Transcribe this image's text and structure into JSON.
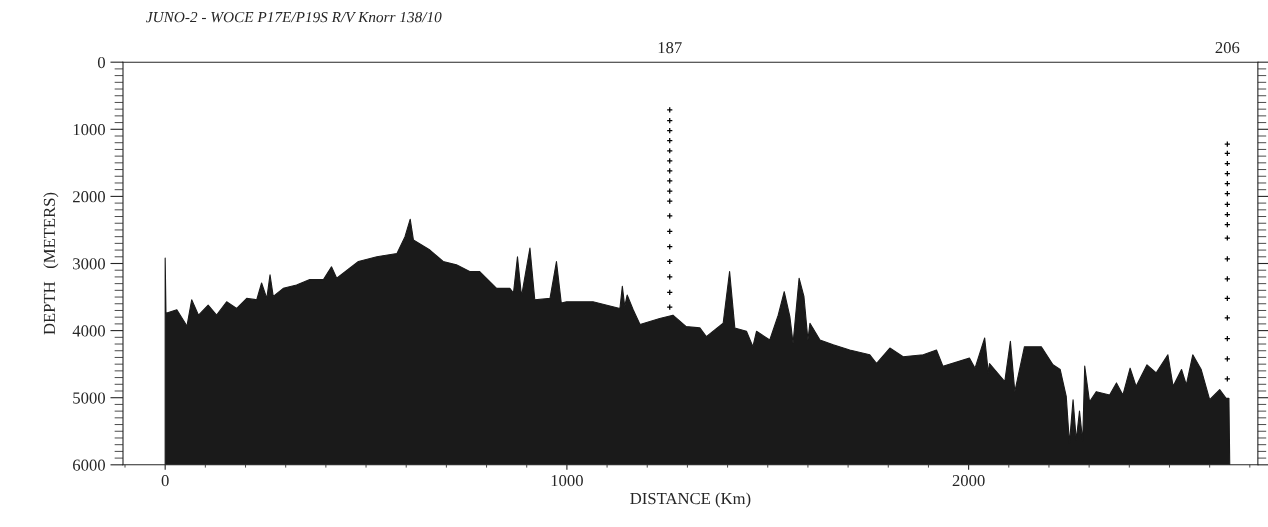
{
  "chart_data": {
    "type": "area",
    "title": "JUNO-2 - WOCE P17E/P19S R/V Knorr 138/10",
    "xlabel": "DISTANCE (Km)",
    "ylabel": "DEPTH   (METERS)",
    "xlim": [
      -105,
      2720
    ],
    "xticks": [
      0,
      1000,
      2000
    ],
    "ylim": [
      6000,
      0
    ],
    "yticks": [
      0,
      1000,
      2000,
      3000,
      4000,
      5000,
      6000
    ],
    "grid": false,
    "legend": false,
    "series": [
      {
        "type": "area",
        "color": "#1a1a1a",
        "x": [
          0,
          0,
          2,
          29,
          50,
          54,
          66,
          83,
          107,
          128,
          153,
          178,
          203,
          228,
          240,
          253,
          261,
          269,
          294,
          327,
          360,
          394,
          414,
          427,
          481,
          527,
          577,
          597,
          610,
          618,
          659,
          692,
          725,
          758,
          783,
          825,
          858,
          867,
          877,
          887,
          908,
          920,
          958,
          974,
          986,
          999,
          1065,
          1132,
          1138,
          1144,
          1150,
          1165,
          1182,
          1231,
          1264,
          1297,
          1331,
          1347,
          1389,
          1405,
          1418,
          1447,
          1463,
          1472,
          1505,
          1526,
          1541,
          1555,
          1563,
          1578,
          1590,
          1600,
          1605,
          1630,
          1663,
          1704,
          1754,
          1771,
          1804,
          1837,
          1887,
          1920,
          1936,
          2002,
          2016,
          2040,
          2049,
          2052,
          2090,
          2104,
          2115,
          2139,
          2181,
          2210,
          2228,
          2243,
          2251,
          2260,
          2268,
          2276,
          2284,
          2289,
          2301,
          2318,
          2351,
          2368,
          2384,
          2402,
          2417,
          2444,
          2467,
          2496,
          2509,
          2530,
          2542,
          2558,
          2579,
          2600,
          2625,
          2641,
          2648,
          2650
        ],
        "values": [
          6000,
          2920,
          3740,
          3690,
          3890,
          3940,
          3540,
          3770,
          3620,
          3770,
          3570,
          3670,
          3520,
          3540,
          3290,
          3520,
          3170,
          3490,
          3370,
          3320,
          3240,
          3240,
          3050,
          3220,
          2970,
          2900,
          2850,
          2600,
          2340,
          2650,
          2800,
          2970,
          3020,
          3120,
          3120,
          3370,
          3370,
          3440,
          2900,
          3490,
          2770,
          3540,
          3520,
          2970,
          3590,
          3570,
          3570,
          3670,
          3340,
          3640,
          3470,
          3690,
          3910,
          3820,
          3770,
          3940,
          3960,
          4090,
          3890,
          3120,
          3960,
          4010,
          4240,
          4010,
          4140,
          3770,
          3420,
          3790,
          4190,
          3220,
          3490,
          4140,
          3890,
          4140,
          4210,
          4290,
          4360,
          4490,
          4260,
          4390,
          4360,
          4290,
          4530,
          4410,
          4560,
          4110,
          4630,
          4490,
          4760,
          4160,
          4910,
          4240,
          4240,
          4510,
          4580,
          4980,
          5680,
          5030,
          5630,
          5200,
          5650,
          4530,
          5060,
          4910,
          4960,
          4780,
          4960,
          4560,
          4830,
          4510,
          4630,
          4360,
          4830,
          4580,
          4810,
          4360,
          4580,
          5030,
          4880,
          5010,
          5010,
          6000
        ]
      },
      {
        "type": "scatter",
        "name": "187",
        "color": "#000000",
        "marker": "cross",
        "x": [
          1256,
          1256,
          1256,
          1256,
          1256,
          1256,
          1256,
          1256,
          1256,
          1256,
          1256,
          1256,
          1256,
          1256,
          1256,
          1256,
          1256
        ],
        "values": [
          710,
          870,
          1020,
          1170,
          1320,
          1470,
          1620,
          1770,
          1920,
          2070,
          2290,
          2520,
          2750,
          2970,
          3200,
          3430,
          3650
        ]
      },
      {
        "type": "scatter",
        "name": "206",
        "color": "#000000",
        "marker": "cross",
        "x": [
          2644,
          2644,
          2644,
          2644,
          2644,
          2644,
          2644,
          2644,
          2644,
          2644,
          2644,
          2644,
          2644,
          2644,
          2644,
          2644,
          2644
        ],
        "values": [
          1220,
          1360,
          1510,
          1660,
          1810,
          1960,
          2120,
          2270,
          2420,
          2620,
          2930,
          3230,
          3520,
          3810,
          4120,
          4420,
          4720
        ]
      }
    ]
  }
}
